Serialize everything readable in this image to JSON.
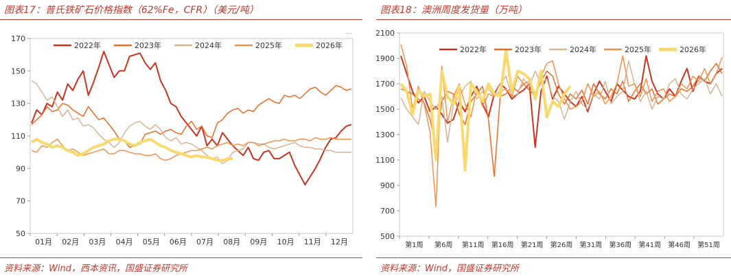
{
  "left": {
    "title": "图表17：普氏铁矿石价格指数（62%Fe，CFR）（美元/吨）",
    "source": "资料来源：Wind，西本资讯，国盛证券研究所",
    "more_glyph": "···",
    "chart_data": {
      "type": "line",
      "xlabels": [
        "01月",
        "02月",
        "03月",
        "04月",
        "05月",
        "06月",
        "07月",
        "08月",
        "09月",
        "10月",
        "11月",
        "12月"
      ],
      "ylim": [
        50,
        170
      ],
      "yticks": [
        50,
        70,
        90,
        110,
        130,
        150,
        170
      ],
      "legend_placement": "top",
      "series": [
        {
          "name": "2022年",
          "color": "#c8321e",
          "width": 2,
          "values": [
            118,
            126,
            123,
            130,
            128,
            137,
            132,
            142,
            138,
            145,
            150,
            135,
            143,
            152,
            162,
            154,
            146,
            150,
            150,
            159,
            160,
            161,
            155,
            151,
            155,
            144,
            138,
            130,
            128,
            122,
            118,
            114,
            110,
            116,
            104,
            108,
            104,
            112,
            108,
            104,
            101,
            98,
            103,
            96,
            95,
            100,
            101,
            96,
            96,
            98,
            100,
            92,
            86,
            80,
            85,
            90,
            96,
            103,
            108,
            109,
            113,
            116,
            117
          ]
        },
        {
          "name": "2023年",
          "color": "#ee6a20",
          "width": 1.5,
          "values": [
            117,
            120,
            123,
            128,
            125,
            126,
            130,
            129,
            126,
            124,
            122,
            128,
            124,
            120,
            121,
            117,
            113,
            108,
            107,
            103,
            104,
            105,
            111,
            112,
            113,
            111,
            113,
            114,
            112,
            111,
            116,
            119,
            114,
            116,
            110,
            109,
            118,
            120,
            124,
            126,
            127,
            124,
            126,
            125,
            129,
            131,
            133,
            131,
            130,
            135,
            134,
            135,
            133,
            136,
            139,
            140,
            137,
            135,
            138,
            141,
            140,
            138,
            139
          ]
        },
        {
          "name": "2024年",
          "color": "#d9b38e",
          "width": 1.5,
          "values": [
            144,
            142,
            137,
            132,
            134,
            128,
            122,
            126,
            120,
            121,
            116,
            117,
            115,
            111,
            108,
            106,
            103,
            106,
            112,
            116,
            118,
            119,
            116,
            114,
            117,
            114,
            109,
            107,
            109,
            105,
            106,
            105,
            103,
            101,
            98,
            96,
            97,
            93,
            95,
            100,
            101,
            102,
            106,
            106,
            105,
            105,
            103,
            102,
            103,
            104,
            105,
            106,
            104,
            103,
            103,
            102,
            102,
            101,
            101,
            100,
            100,
            100,
            100
          ]
        },
        {
          "name": "2025年",
          "color": "#f2924a",
          "width": 1.5,
          "values": [
            101,
            100,
            104,
            103,
            106,
            108,
            104,
            101,
            102,
            100,
            98,
            99,
            100,
            101,
            102,
            99,
            99,
            101,
            101,
            100,
            99,
            99,
            98,
            98,
            99,
            96,
            95,
            96,
            98,
            99,
            100,
            101,
            101,
            102,
            103,
            102,
            104,
            105,
            106,
            104,
            105,
            104,
            106,
            106,
            104,
            105,
            106,
            107,
            107,
            108,
            107,
            107,
            108,
            108,
            107,
            109,
            108,
            108,
            109,
            108,
            108,
            108,
            108
          ]
        },
        {
          "name": "2026年",
          "color": "#f7d96e",
          "width": 4,
          "values": [
            106,
            108,
            106,
            105,
            103,
            104,
            103,
            101,
            100,
            98,
            99,
            101,
            103,
            104,
            105,
            107,
            108,
            108,
            107,
            105,
            104,
            106,
            107,
            108,
            106,
            104,
            103,
            101,
            100,
            99,
            98,
            97,
            98,
            97,
            97,
            96,
            95,
            95,
            96,
            96
          ]
        }
      ]
    }
  },
  "right": {
    "title": "图表18：澳洲周度发货量（万吨）",
    "source": "资料来源：Wind，国盛证券研究所",
    "chart_data": {
      "type": "line",
      "xlabels": [
        "第1周",
        "第6周",
        "第11周",
        "第16周",
        "第21周",
        "第26周",
        "第31周",
        "第36周",
        "第41周",
        "第46周",
        "第51周"
      ],
      "ylim": [
        500,
        2100
      ],
      "yticks": [
        500,
        700,
        900,
        1100,
        1300,
        1500,
        1700,
        1900,
        2100
      ],
      "legend_placement": "top",
      "series": [
        {
          "name": "2022年",
          "color": "#c8321e",
          "width": 2,
          "values": [
            1920,
            1780,
            1640,
            1550,
            1600,
            1480,
            1520,
            1460,
            1390,
            1420,
            1560,
            1480,
            1600,
            1680,
            1540,
            1440,
            1620,
            1700,
            1660,
            1580,
            1620,
            1650,
            1700,
            1200,
            1640,
            1760,
            1580,
            1680,
            1620,
            1560,
            1520,
            1600,
            1480,
            1620,
            1720,
            1640,
            1560,
            1700,
            1650,
            1600,
            1580,
            1640,
            1920,
            1720,
            1620,
            1580,
            1660,
            1600,
            1720,
            1820,
            1640,
            1760,
            1720,
            1700,
            1780,
            1820
          ]
        },
        {
          "name": "2023年",
          "color": "#ee6a20",
          "width": 1.5,
          "values": [
            1660,
            1640,
            1620,
            1580,
            1550,
            1420,
            1220,
            1560,
            1640,
            1620,
            1460,
            1380,
            1560,
            1620,
            1680,
            1420,
            970,
            1600,
            1620,
            1680,
            1640,
            1700,
            1650,
            1600,
            1720,
            1800,
            1760,
            1620,
            1540,
            1620,
            1580,
            1650,
            1540,
            1700,
            1620,
            1580,
            1660,
            1620,
            1720,
            1560,
            1640,
            1700,
            1620,
            1660,
            1540,
            1580,
            1620,
            1600,
            1660,
            1640,
            1680,
            1760,
            1720,
            1800,
            1860,
            1780
          ]
        },
        {
          "name": "2024年",
          "color": "#d9b38e",
          "width": 1.5,
          "values": [
            1590,
            1500,
            1440,
            1380,
            1640,
            1560,
            1500,
            1600,
            1240,
            1540,
            1600,
            1680,
            1720,
            1580,
            1640,
            1660,
            1600,
            1700,
            1760,
            1600,
            1620,
            1740,
            1680,
            1800,
            1700,
            1740,
            1600,
            1560,
            1420,
            1560,
            1640,
            1540,
            1500,
            1620,
            1580,
            1720,
            1540,
            1600,
            1640,
            1880,
            1700,
            1560,
            1640,
            1500,
            1600,
            1580,
            1700,
            1740,
            1620,
            1580,
            1660,
            1700,
            1740,
            1620,
            1700,
            1600
          ]
        },
        {
          "name": "2025年",
          "color": "#f2924a",
          "width": 1.5,
          "values": [
            2010,
            1840,
            1500,
            1680,
            1540,
            1320,
            730,
            1840,
            1400,
            1600,
            1700,
            1540,
            1440,
            1660,
            1520,
            1620,
            1600,
            1640,
            1660,
            1600,
            1760,
            1700,
            1720,
            1620,
            1760,
            1860,
            1880,
            1700,
            1580,
            1500,
            1520,
            1560,
            1700,
            1600,
            1640,
            1540,
            1600,
            1700,
            1920,
            1680,
            1700,
            1600,
            1740,
            1560,
            1640,
            1660,
            1560,
            1600,
            1700,
            1660,
            1760,
            1720,
            1820,
            1700,
            1780,
            1910
          ]
        },
        {
          "name": "2026年",
          "color": "#f7d96e",
          "width": 4,
          "values": [
            1700,
            1640,
            1460,
            1650,
            1600,
            1620,
            1100,
            1800,
            1600,
            1540,
            1680,
            1020,
            1700,
            1640,
            1560,
            1700,
            1620,
            1600,
            1960,
            1640,
            1800,
            1780,
            1740,
            1580,
            1800,
            1440,
            1560,
            1520,
            1620,
            1680
          ]
        }
      ]
    }
  }
}
